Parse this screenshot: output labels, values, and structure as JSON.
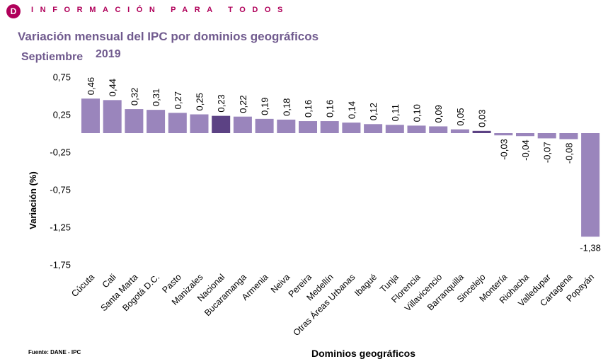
{
  "header": {
    "logo_letter": "D",
    "tagline": "INFORMACIÓN PARA TODOS",
    "brand_color": "#b0005a"
  },
  "chart_title": "Variación mensual del IPC por dominios geográficos",
  "subtitle_month": "Septiembre",
  "subtitle_year": "2019",
  "source": "Fuente: DANE - IPC",
  "chart_data": {
    "type": "bar",
    "title": "Variación mensual del IPC por dominios geográficos",
    "subtitle": "Septiembre 2019",
    "xlabel": "Dominios geográficos",
    "ylabel": "Variación (%)",
    "ylim": [
      -1.75,
      0.75
    ],
    "yticks": [
      "0,75",
      "0,25",
      "-0,25",
      "-0,75",
      "-1,25",
      "-1,75"
    ],
    "ytick_values": [
      0.75,
      0.25,
      -0.25,
      -0.75,
      -1.25,
      -1.75
    ],
    "grid": false,
    "categories": [
      "Cúcuta",
      "Cali",
      "Santa Marta",
      "Bogotá D.C.",
      "Pasto",
      "Manizales",
      "Nacional",
      "Bucaramanga",
      "Armenia",
      "Neiva",
      "Pereira",
      "Medellín",
      "Otras Áreas Urbanas",
      "Ibagué",
      "Tunja",
      "Florencia",
      "Villavicencio",
      "Barranquilla",
      "Sincelejo",
      "Montería",
      "Riohacha",
      "Valledupar",
      "Cartagena",
      "Popayán"
    ],
    "values": [
      0.46,
      0.44,
      0.32,
      0.31,
      0.27,
      0.25,
      0.23,
      0.22,
      0.19,
      0.18,
      0.16,
      0.16,
      0.14,
      0.12,
      0.11,
      0.1,
      0.09,
      0.05,
      0.03,
      -0.03,
      -0.04,
      -0.07,
      -0.08,
      -1.38
    ],
    "value_labels": [
      "0,46",
      "0,44",
      "0,32",
      "0,31",
      "0,27",
      "0,25",
      "0,23",
      "0,22",
      "0,19",
      "0,18",
      "0,16",
      "0,16",
      "0,14",
      "0,12",
      "0,11",
      "0,10",
      "0,09",
      "0,05",
      "0,03",
      "-0,03",
      "-0,04",
      "-0,07",
      "-0,08",
      "-1,38"
    ],
    "bar_color": "#9a85bc",
    "highlight_color": "#5c4284",
    "highlight_categories": [
      "Nacional",
      "Sincelejo"
    ]
  }
}
